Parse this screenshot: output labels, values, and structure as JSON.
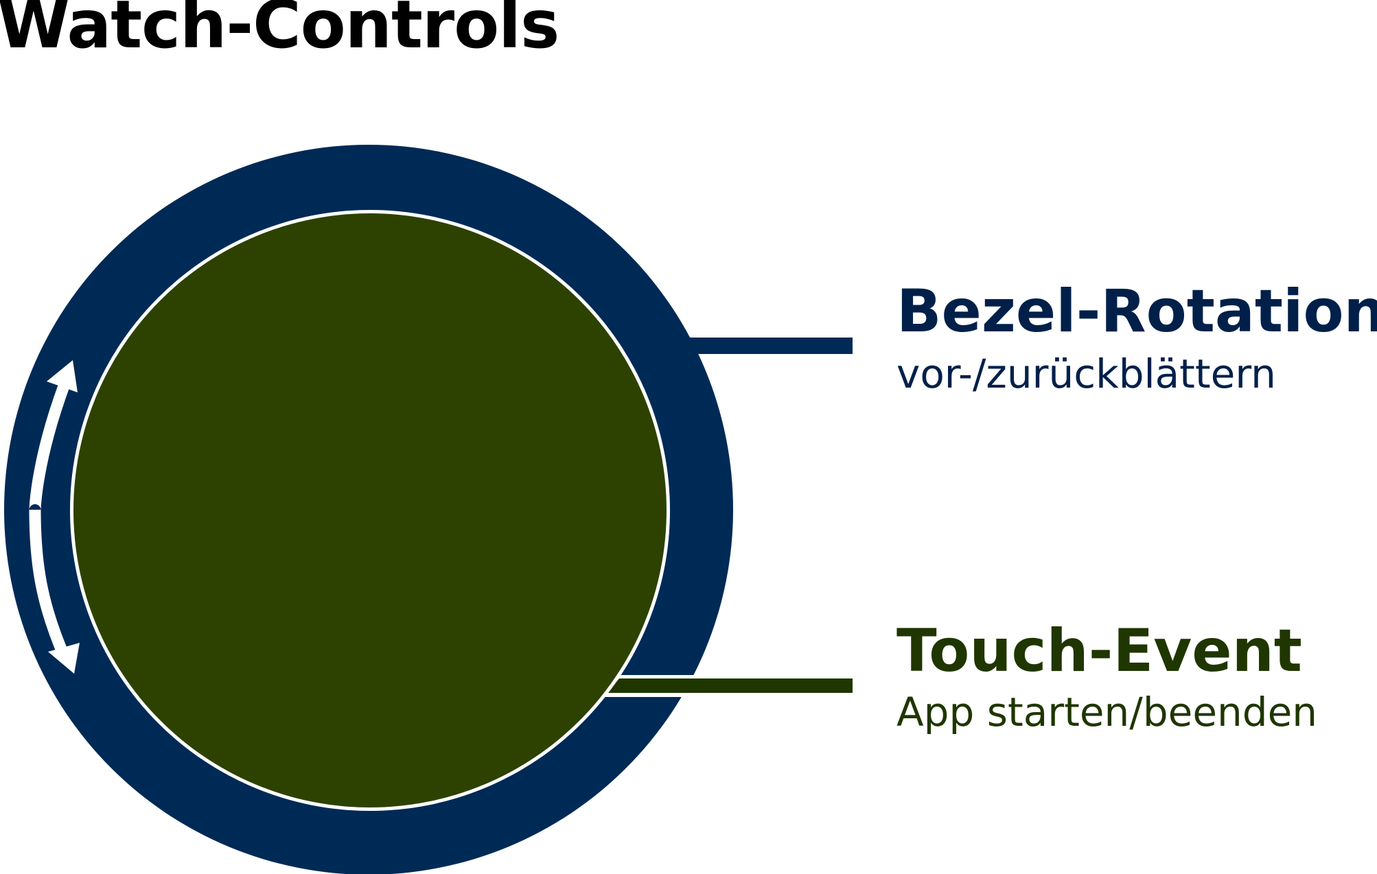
{
  "title": "Watch-Controls",
  "bezel": {
    "heading": "Bezel-Rotation",
    "description": "vor-/zurückblättern"
  },
  "touch": {
    "heading": "Touch-Event",
    "description": "App starten/beenden"
  },
  "colors": {
    "bezel": "#002a56",
    "face": "#2d4200",
    "bezel_label": "#00204a",
    "touch_label": "#1f3600",
    "arrow": "#ffffff"
  },
  "icons": {
    "rotation": "curved-double-arrow-icon"
  }
}
